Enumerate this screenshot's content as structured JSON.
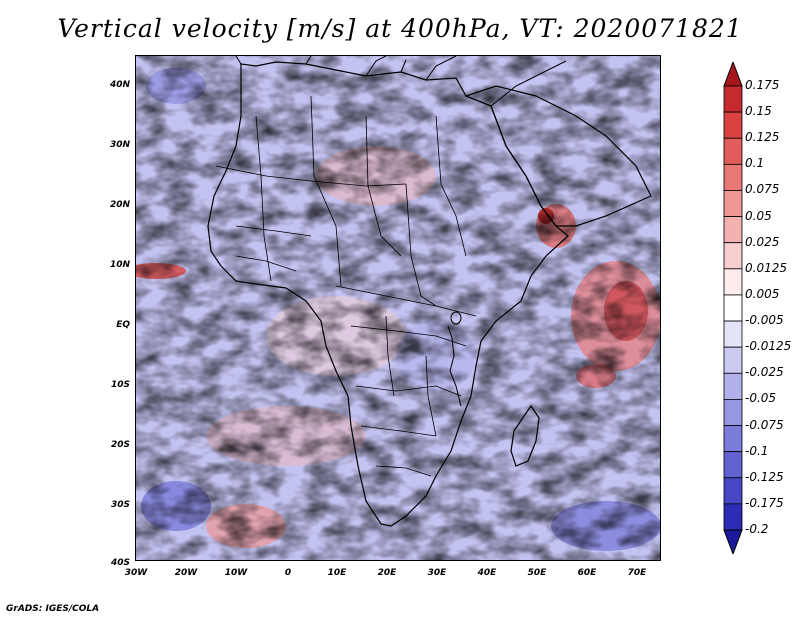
{
  "title": "Vertical velocity [m/s] at 400hPa, VT: 2020071821",
  "credit": "GrADS: IGES/COLA",
  "axes": {
    "lat_labels": [
      "40N",
      "30N",
      "20N",
      "10N",
      "EQ",
      "10S",
      "20S",
      "30S",
      "40S"
    ],
    "lon_labels": [
      "30W",
      "20W",
      "10W",
      "0",
      "10E",
      "20E",
      "30E",
      "40E",
      "50E",
      "60E",
      "70E"
    ]
  },
  "colorbar": {
    "labels": [
      "0.175",
      "0.15",
      "0.125",
      "0.1",
      "0.075",
      "0.05",
      "0.025",
      "0.0125",
      "0.005",
      "-0.005",
      "-0.0125",
      "-0.025",
      "-0.05",
      "-0.075",
      "-0.1",
      "-0.125",
      "-0.175",
      "-0.2"
    ],
    "colors": [
      "#a5171b",
      "#c42a2e",
      "#d9423f",
      "#e25c5b",
      "#e97876",
      "#ef9594",
      "#f3b1b0",
      "#f8cfcf",
      "#fcecec",
      "#ffffff",
      "#e4e4f8",
      "#cbcbf2",
      "#b1b1ec",
      "#9696e4",
      "#7b7bdb",
      "#6161d2",
      "#4747c6",
      "#2c2cb6",
      "#1a1a9a"
    ]
  },
  "map_colors": {
    "base": "#c9c9f3",
    "land_outline": "#000000"
  }
}
